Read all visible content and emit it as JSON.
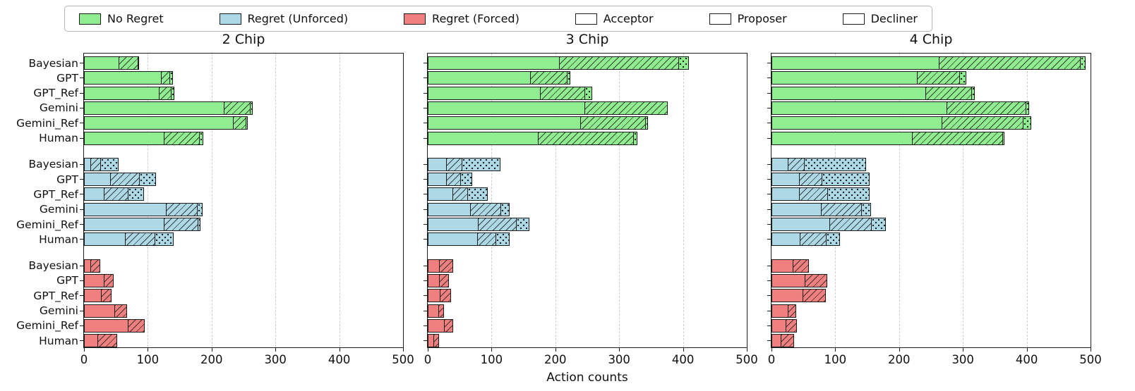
{
  "legend": {
    "items": [
      {
        "label": "No Regret",
        "swatch": "fill",
        "color": "#90ee90"
      },
      {
        "label": "Regret (Unforced)",
        "swatch": "fill",
        "color": "#add8e6"
      },
      {
        "label": "Regret (Forced)",
        "swatch": "fill",
        "color": "#f08080"
      },
      {
        "label": "Acceptor",
        "swatch": "plain",
        "color": "#ffffff"
      },
      {
        "label": "Proposer",
        "swatch": "hatch",
        "color": "#ffffff"
      },
      {
        "label": "Decliner",
        "swatch": "dots",
        "color": "#ffffff"
      }
    ]
  },
  "axis": {
    "xlabel": "Action counts",
    "x_ticks": [
      0,
      100,
      200,
      300,
      400,
      500
    ],
    "xlim": [
      0,
      500
    ],
    "grid": "vertical dashed"
  },
  "colors": {
    "no_regret": "#90ee90",
    "regret_unforced": "#add8e6",
    "regret_forced": "#f08080",
    "edge": "#1c1c1c",
    "grid": "#cdcdcd"
  },
  "chart_data": [
    {
      "type": "bar",
      "orientation": "horizontal",
      "title": "2 Chip",
      "xlim": [
        0,
        500
      ],
      "stack_order": [
        "Acceptor",
        "Proposer",
        "Decliner"
      ],
      "show_y_labels": true,
      "groups": [
        {
          "regret": "No Regret",
          "color": "#90ee90",
          "bars": [
            {
              "label": "Bayesian",
              "acceptor": 55,
              "proposer": 31,
              "decliner": 3
            },
            {
              "label": "GPT",
              "acceptor": 122,
              "proposer": 14,
              "decliner": 6
            },
            {
              "label": "GPT_Ref",
              "acceptor": 118,
              "proposer": 20,
              "decliner": 6
            },
            {
              "label": "Gemini",
              "acceptor": 220,
              "proposer": 42,
              "decliner": 5
            },
            {
              "label": "Gemini_Ref",
              "acceptor": 234,
              "proposer": 22,
              "decliner": 3
            },
            {
              "label": "Human",
              "acceptor": 126,
              "proposer": 57,
              "decliner": 6
            }
          ]
        },
        {
          "regret": "Regret (Unforced)",
          "color": "#add8e6",
          "bars": [
            {
              "label": "Bayesian",
              "acceptor": 11,
              "proposer": 17,
              "decliner": 28
            },
            {
              "label": "GPT",
              "acceptor": 42,
              "proposer": 47,
              "decliner": 26
            },
            {
              "label": "GPT_Ref",
              "acceptor": 32,
              "proposer": 39,
              "decliner": 25
            },
            {
              "label": "Gemini",
              "acceptor": 129,
              "proposer": 50,
              "decliner": 9
            },
            {
              "label": "Gemini_Ref",
              "acceptor": 126,
              "proposer": 54,
              "decliner": 5
            },
            {
              "label": "Human",
              "acceptor": 65,
              "proposer": 48,
              "decliner": 30
            }
          ]
        },
        {
          "regret": "Regret (Forced)",
          "color": "#f08080",
          "bars": [
            {
              "label": "Bayesian",
              "acceptor": 11,
              "proposer": 16,
              "decliner": 0
            },
            {
              "label": "GPT",
              "acceptor": 32,
              "proposer": 16,
              "decliner": 0
            },
            {
              "label": "GPT_Ref",
              "acceptor": 28,
              "proposer": 16,
              "decliner": 0
            },
            {
              "label": "Gemini",
              "acceptor": 49,
              "proposer": 20,
              "decliner": 0
            },
            {
              "label": "Gemini_Ref",
              "acceptor": 70,
              "proposer": 26,
              "decliner": 0
            },
            {
              "label": "Human",
              "acceptor": 22,
              "proposer": 31,
              "decliner": 0
            }
          ]
        }
      ]
    },
    {
      "type": "bar",
      "orientation": "horizontal",
      "title": "3 Chip",
      "xlim": [
        0,
        500
      ],
      "stack_order": [
        "Acceptor",
        "Proposer",
        "Decliner"
      ],
      "show_y_labels": false,
      "groups": [
        {
          "regret": "No Regret",
          "color": "#90ee90",
          "bars": [
            {
              "label": "Bayesian",
              "acceptor": 207,
              "proposer": 188,
              "decliner": 17
            },
            {
              "label": "GPT",
              "acceptor": 161,
              "proposer": 59,
              "decliner": 6
            },
            {
              "label": "GPT_Ref",
              "acceptor": 177,
              "proposer": 71,
              "decliner": 12
            },
            {
              "label": "Gemini",
              "acceptor": 247,
              "proposer": 130,
              "decliner": 0
            },
            {
              "label": "Gemini_Ref",
              "acceptor": 240,
              "proposer": 103,
              "decliner": 4
            },
            {
              "label": "Human",
              "acceptor": 174,
              "proposer": 150,
              "decliner": 7
            }
          ]
        },
        {
          "regret": "Regret (Unforced)",
          "color": "#add8e6",
          "bars": [
            {
              "label": "Bayesian",
              "acceptor": 30,
              "proposer": 25,
              "decliner": 61
            },
            {
              "label": "GPT",
              "acceptor": 30,
              "proposer": 23,
              "decliner": 19
            },
            {
              "label": "GPT_Ref",
              "acceptor": 40,
              "proposer": 24,
              "decliner": 32
            },
            {
              "label": "Gemini",
              "acceptor": 68,
              "proposer": 48,
              "decliner": 15
            },
            {
              "label": "Gemini_Ref",
              "acceptor": 80,
              "proposer": 60,
              "decliner": 22
            },
            {
              "label": "Human",
              "acceptor": 78,
              "proposer": 30,
              "decliner": 23
            }
          ]
        },
        {
          "regret": "Regret (Forced)",
          "color": "#f08080",
          "bars": [
            {
              "label": "Bayesian",
              "acceptor": 19,
              "proposer": 22,
              "decliner": 0
            },
            {
              "label": "GPT",
              "acceptor": 19,
              "proposer": 15,
              "decliner": 0
            },
            {
              "label": "GPT_Ref",
              "acceptor": 20,
              "proposer": 18,
              "decliner": 0
            },
            {
              "label": "Gemini",
              "acceptor": 18,
              "proposer": 9,
              "decliner": 0
            },
            {
              "label": "Gemini_Ref",
              "acceptor": 27,
              "proposer": 14,
              "decliner": 0
            },
            {
              "label": "Human",
              "acceptor": 10,
              "proposer": 9,
              "decliner": 0
            }
          ]
        }
      ]
    },
    {
      "type": "bar",
      "orientation": "horizontal",
      "title": "4 Chip",
      "xlim": [
        0,
        500
      ],
      "stack_order": [
        "Acceptor",
        "Proposer",
        "Decliner"
      ],
      "show_y_labels": false,
      "groups": [
        {
          "regret": "No Regret",
          "color": "#90ee90",
          "bars": [
            {
              "label": "Bayesian",
              "acceptor": 263,
              "proposer": 223,
              "decliner": 9
            },
            {
              "label": "GPT",
              "acceptor": 229,
              "proposer": 68,
              "decliner": 10
            },
            {
              "label": "GPT_Ref",
              "acceptor": 242,
              "proposer": 73,
              "decliner": 6
            },
            {
              "label": "Gemini",
              "acceptor": 276,
              "proposer": 125,
              "decliner": 5
            },
            {
              "label": "Gemini_Ref",
              "acceptor": 268,
              "proposer": 128,
              "decliner": 13
            },
            {
              "label": "Human",
              "acceptor": 221,
              "proposer": 143,
              "decliner": 3
            }
          ]
        },
        {
          "regret": "Regret (Unforced)",
          "color": "#add8e6",
          "bars": [
            {
              "label": "Bayesian",
              "acceptor": 27,
              "proposer": 26,
              "decliner": 97
            },
            {
              "label": "GPT",
              "acceptor": 44,
              "proposer": 37,
              "decliner": 75
            },
            {
              "label": "GPT_Ref",
              "acceptor": 44,
              "proposer": 46,
              "decliner": 66
            },
            {
              "label": "Gemini",
              "acceptor": 78,
              "proposer": 65,
              "decliner": 15
            },
            {
              "label": "Gemini_Ref",
              "acceptor": 92,
              "proposer": 66,
              "decliner": 23
            },
            {
              "label": "Human",
              "acceptor": 45,
              "proposer": 42,
              "decliner": 23
            }
          ]
        },
        {
          "regret": "Regret (Forced)",
          "color": "#f08080",
          "bars": [
            {
              "label": "Bayesian",
              "acceptor": 34,
              "proposer": 26,
              "decliner": 0
            },
            {
              "label": "GPT",
              "acceptor": 53,
              "proposer": 35,
              "decliner": 0
            },
            {
              "label": "GPT_Ref",
              "acceptor": 50,
              "proposer": 36,
              "decliner": 0
            },
            {
              "label": "Gemini",
              "acceptor": 27,
              "proposer": 13,
              "decliner": 0
            },
            {
              "label": "Gemini_Ref",
              "acceptor": 23,
              "proposer": 18,
              "decliner": 0
            },
            {
              "label": "Human",
              "acceptor": 15,
              "proposer": 21,
              "decliner": 0
            }
          ]
        }
      ]
    }
  ]
}
